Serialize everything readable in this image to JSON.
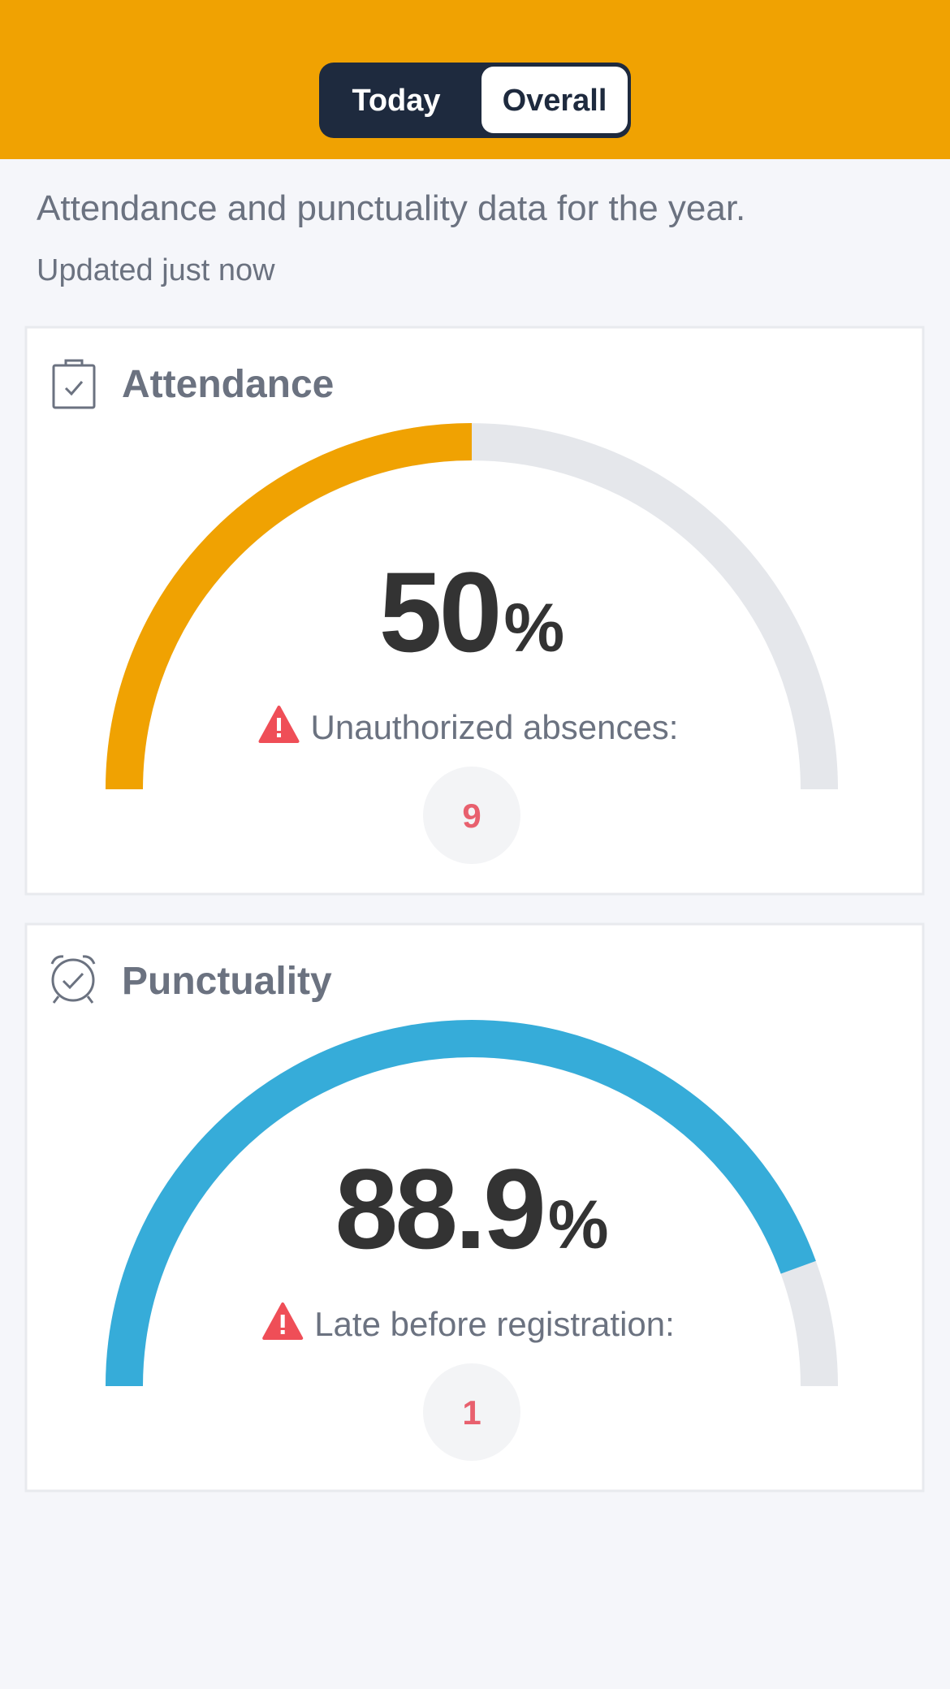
{
  "header": {
    "tabs": [
      "Today",
      "Overall"
    ]
  },
  "description": "Attendance and punctuality data for the year.",
  "updated": "Updated just now",
  "cards": [
    {
      "title": "Attendance",
      "value": 50,
      "unit": "%",
      "label": "Unauthorized absences:",
      "count": 9,
      "color": "#f0a202"
    },
    {
      "title": "Punctuality",
      "value": 88.9,
      "unit": "%",
      "label": "Late before registration:",
      "count": 1,
      "color": "#36acd9"
    }
  ]
}
